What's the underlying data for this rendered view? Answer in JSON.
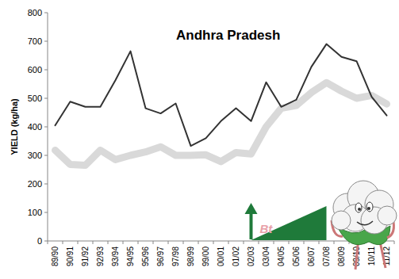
{
  "chart_data": {
    "type": "line",
    "title": "Andhra Pradesh",
    "y_label": "YIELD (kg/ha)",
    "categories": [
      "89/90",
      "90/91",
      "91/92",
      "92/93",
      "93/94",
      "94/95",
      "95/96",
      "96/97",
      "97/98",
      "98/99",
      "99/00",
      "00/01",
      "01/02",
      "02/03",
      "03/04",
      "04/05",
      "05/06",
      "06/07",
      "07/08",
      "08/09",
      "09/10",
      "10/11",
      "11/12"
    ],
    "series": [
      {
        "color": "#333333",
        "line_style": "solid",
        "values": [
          405,
          488,
          470,
          470,
          563,
          665,
          465,
          447,
          482,
          333,
          360,
          420,
          465,
          420,
          556,
          470,
          495,
          610,
          690,
          645,
          630,
          505,
          440
        ]
      },
      {
        "color": "#d9d9d9",
        "line_style": "thick",
        "values": [
          318,
          268,
          265,
          318,
          285,
          300,
          312,
          330,
          300,
          300,
          302,
          278,
          310,
          305,
          400,
          465,
          475,
          520,
          555,
          525,
          500,
          510,
          480
        ]
      }
    ],
    "ylim": [
      0,
      800
    ],
    "yticks": [
      0,
      100,
      200,
      300,
      400,
      500,
      600,
      700,
      800
    ],
    "grid": false,
    "annotations": [
      {
        "text": "Bt",
        "x": "02/03"
      }
    ]
  }
}
